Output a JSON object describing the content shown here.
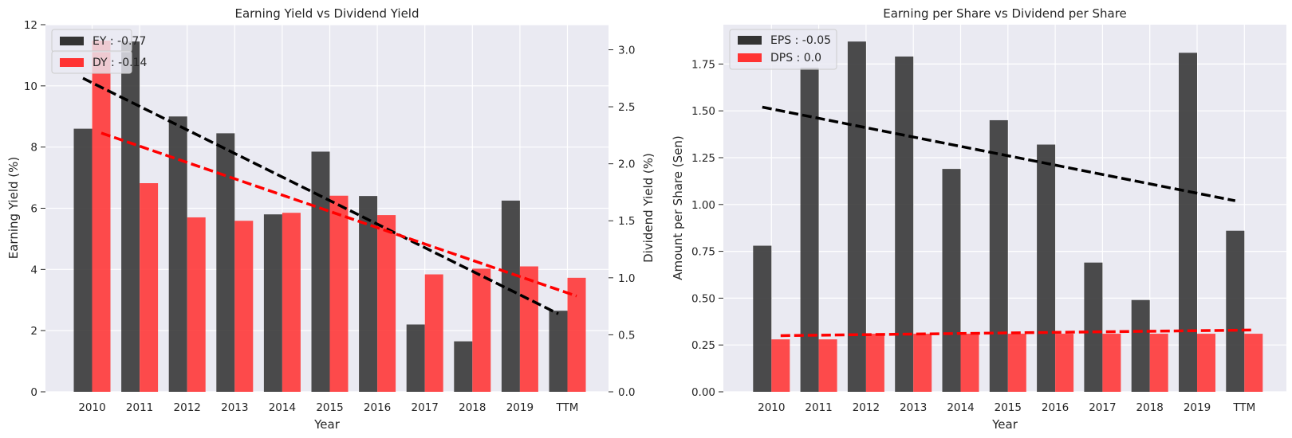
{
  "chart_data": [
    {
      "type": "bar",
      "title": "Earning Yield vs Dividend Yield",
      "xlabel": "Year",
      "ylabel": "Earning Yield (%)",
      "ylabel_right": "Dividend Yield (%)",
      "categories": [
        "2010",
        "2011",
        "2012",
        "2013",
        "2014",
        "2015",
        "2016",
        "2017",
        "2018",
        "2019",
        "TTM"
      ],
      "ylim": [
        0,
        12
      ],
      "ylim_right": [
        0,
        3.22
      ],
      "yticks": [
        "0",
        "2",
        "4",
        "6",
        "8",
        "10",
        "12"
      ],
      "yticks_right": [
        "0.0",
        "0.5",
        "1.0",
        "1.5",
        "2.0",
        "2.5",
        "3.0"
      ],
      "grid": true,
      "legend_position": "top-left",
      "series": [
        {
          "name": "EY : -0.77",
          "axis": "left",
          "color": "#333333",
          "values": [
            8.6,
            11.45,
            9.0,
            8.45,
            5.8,
            7.85,
            6.4,
            2.2,
            1.65,
            6.25,
            2.65
          ],
          "trend": [
            10.25,
            2.55
          ]
        },
        {
          "name": "DY : -0.14",
          "axis": "right",
          "color": "#ff3333",
          "values": [
            3.08,
            1.83,
            1.53,
            1.5,
            1.57,
            1.72,
            1.55,
            1.03,
            1.08,
            1.1,
            1.0
          ],
          "trend": [
            2.27,
            0.84
          ]
        }
      ]
    },
    {
      "type": "bar",
      "title": "Earning per Share vs Dividend per Share",
      "xlabel": "Year",
      "ylabel": "Amount per Share (Sen)",
      "categories": [
        "2010",
        "2011",
        "2012",
        "2013",
        "2014",
        "2015",
        "2016",
        "2017",
        "2018",
        "2019",
        "TTM"
      ],
      "ylim": [
        0,
        1.96
      ],
      "yticks": [
        "0.00",
        "0.25",
        "0.50",
        "0.75",
        "1.00",
        "1.25",
        "1.50",
        "1.75"
      ],
      "grid": true,
      "legend_position": "top-left",
      "series": [
        {
          "name": "EPS : -0.05",
          "color": "#333333",
          "values": [
            0.78,
            1.73,
            1.87,
            1.79,
            1.19,
            1.45,
            1.32,
            0.69,
            0.49,
            1.81,
            0.86
          ],
          "trend": [
            1.52,
            1.02
          ]
        },
        {
          "name": "DPS : 0.0",
          "color": "#ff3333",
          "values": [
            0.28,
            0.28,
            0.31,
            0.31,
            0.31,
            0.31,
            0.31,
            0.31,
            0.31,
            0.31,
            0.31
          ],
          "trend": [
            0.3,
            0.33
          ]
        }
      ]
    }
  ]
}
